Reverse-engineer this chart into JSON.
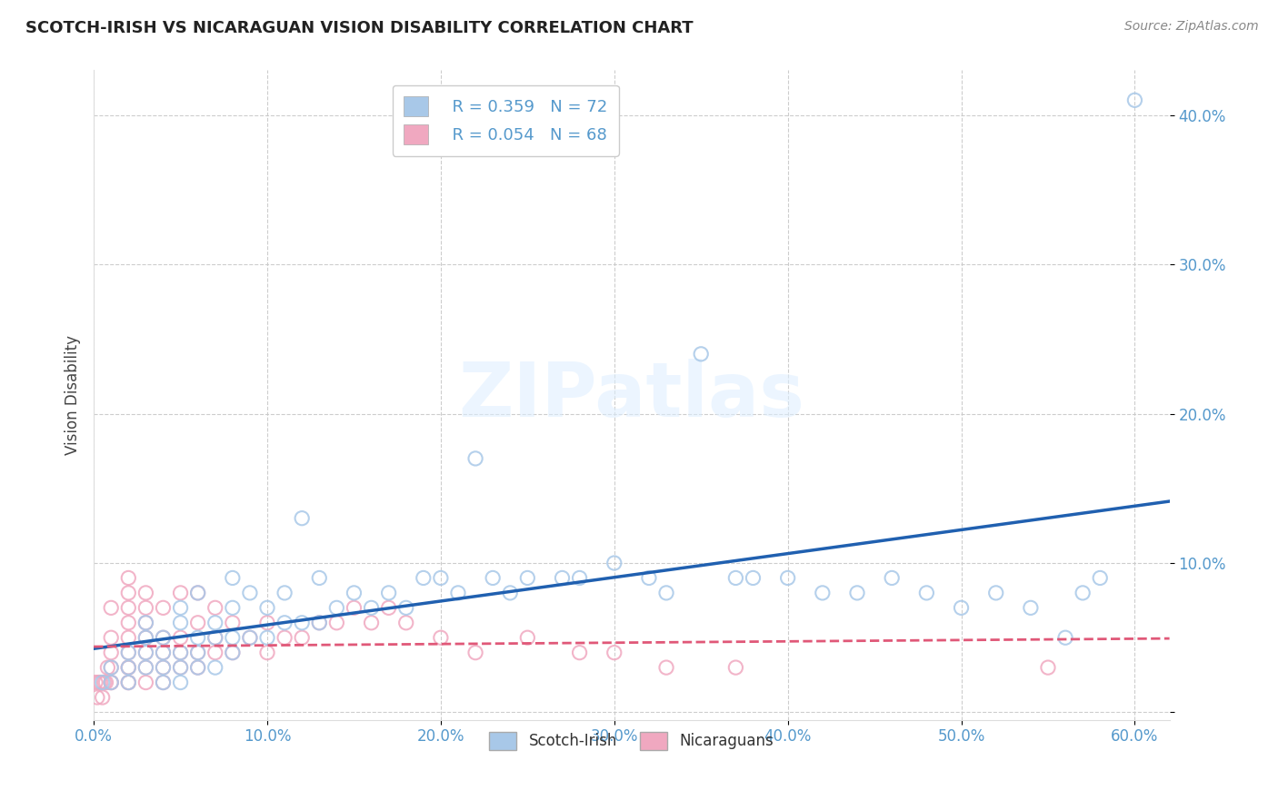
{
  "title": "SCOTCH-IRISH VS NICARAGUAN VISION DISABILITY CORRELATION CHART",
  "source": "Source: ZipAtlas.com",
  "ylabel": "Vision Disability",
  "xlim": [
    0.0,
    0.62
  ],
  "ylim": [
    -0.005,
    0.43
  ],
  "xticks": [
    0.0,
    0.1,
    0.2,
    0.3,
    0.4,
    0.5,
    0.6
  ],
  "yticks": [
    0.0,
    0.1,
    0.2,
    0.3,
    0.4
  ],
  "xticklabels": [
    "0.0%",
    "10.0%",
    "20.0%",
    "30.0%",
    "40.0%",
    "50.0%",
    "60.0%"
  ],
  "yticklabels": [
    "",
    "10.0%",
    "20.0%",
    "30.0%",
    "40.0%"
  ],
  "scotch_irish_R": 0.359,
  "scotch_irish_N": 72,
  "nicaraguan_R": 0.054,
  "nicaraguan_N": 68,
  "scotch_irish_color": "#a8c8e8",
  "nicaraguan_color": "#f0a8c0",
  "scotch_irish_line_color": "#2060b0",
  "nicaraguan_line_color": "#e05878",
  "grid_color": "#c8c8c8",
  "title_color": "#222222",
  "axis_label_color": "#444444",
  "tick_label_color": "#5599cc",
  "legend_label_color": "#5599cc",
  "watermark": "ZIPatlas",
  "background_color": "#ffffff",
  "scotch_irish_x": [
    0.005,
    0.01,
    0.01,
    0.02,
    0.02,
    0.02,
    0.03,
    0.03,
    0.03,
    0.03,
    0.04,
    0.04,
    0.04,
    0.04,
    0.05,
    0.05,
    0.05,
    0.05,
    0.05,
    0.06,
    0.06,
    0.06,
    0.06,
    0.07,
    0.07,
    0.07,
    0.08,
    0.08,
    0.08,
    0.08,
    0.09,
    0.09,
    0.1,
    0.1,
    0.11,
    0.11,
    0.12,
    0.12,
    0.13,
    0.13,
    0.14,
    0.15,
    0.16,
    0.17,
    0.18,
    0.19,
    0.2,
    0.21,
    0.22,
    0.23,
    0.24,
    0.25,
    0.27,
    0.28,
    0.3,
    0.32,
    0.33,
    0.35,
    0.37,
    0.38,
    0.4,
    0.42,
    0.44,
    0.46,
    0.48,
    0.5,
    0.52,
    0.54,
    0.56,
    0.57,
    0.58,
    0.6
  ],
  "scotch_irish_y": [
    0.02,
    0.02,
    0.03,
    0.03,
    0.02,
    0.04,
    0.03,
    0.04,
    0.05,
    0.06,
    0.02,
    0.03,
    0.04,
    0.05,
    0.02,
    0.03,
    0.04,
    0.06,
    0.07,
    0.03,
    0.04,
    0.05,
    0.08,
    0.03,
    0.05,
    0.06,
    0.04,
    0.05,
    0.07,
    0.09,
    0.05,
    0.08,
    0.05,
    0.07,
    0.06,
    0.08,
    0.06,
    0.13,
    0.06,
    0.09,
    0.07,
    0.08,
    0.07,
    0.08,
    0.07,
    0.09,
    0.09,
    0.08,
    0.17,
    0.09,
    0.08,
    0.09,
    0.09,
    0.09,
    0.1,
    0.09,
    0.08,
    0.24,
    0.09,
    0.09,
    0.09,
    0.08,
    0.08,
    0.09,
    0.08,
    0.07,
    0.08,
    0.07,
    0.05,
    0.08,
    0.09,
    0.41
  ],
  "nicaraguan_x": [
    0.001,
    0.002,
    0.003,
    0.004,
    0.005,
    0.006,
    0.007,
    0.008,
    0.01,
    0.01,
    0.01,
    0.01,
    0.01,
    0.01,
    0.02,
    0.02,
    0.02,
    0.02,
    0.02,
    0.02,
    0.02,
    0.02,
    0.02,
    0.02,
    0.03,
    0.03,
    0.03,
    0.03,
    0.03,
    0.03,
    0.03,
    0.04,
    0.04,
    0.04,
    0.04,
    0.04,
    0.05,
    0.05,
    0.05,
    0.05,
    0.06,
    0.06,
    0.06,
    0.06,
    0.07,
    0.07,
    0.07,
    0.08,
    0.08,
    0.09,
    0.1,
    0.1,
    0.11,
    0.12,
    0.13,
    0.14,
    0.15,
    0.16,
    0.17,
    0.18,
    0.2,
    0.22,
    0.25,
    0.28,
    0.3,
    0.33,
    0.37,
    0.55
  ],
  "nicaraguan_y": [
    0.02,
    0.01,
    0.02,
    0.02,
    0.01,
    0.02,
    0.02,
    0.03,
    0.02,
    0.02,
    0.03,
    0.04,
    0.05,
    0.07,
    0.02,
    0.02,
    0.03,
    0.04,
    0.05,
    0.06,
    0.07,
    0.08,
    0.09,
    0.03,
    0.02,
    0.03,
    0.04,
    0.05,
    0.06,
    0.07,
    0.08,
    0.02,
    0.03,
    0.04,
    0.05,
    0.07,
    0.03,
    0.04,
    0.05,
    0.08,
    0.03,
    0.04,
    0.06,
    0.08,
    0.04,
    0.05,
    0.07,
    0.04,
    0.06,
    0.05,
    0.04,
    0.06,
    0.05,
    0.05,
    0.06,
    0.06,
    0.07,
    0.06,
    0.07,
    0.06,
    0.05,
    0.04,
    0.05,
    0.04,
    0.04,
    0.03,
    0.03,
    0.03
  ]
}
